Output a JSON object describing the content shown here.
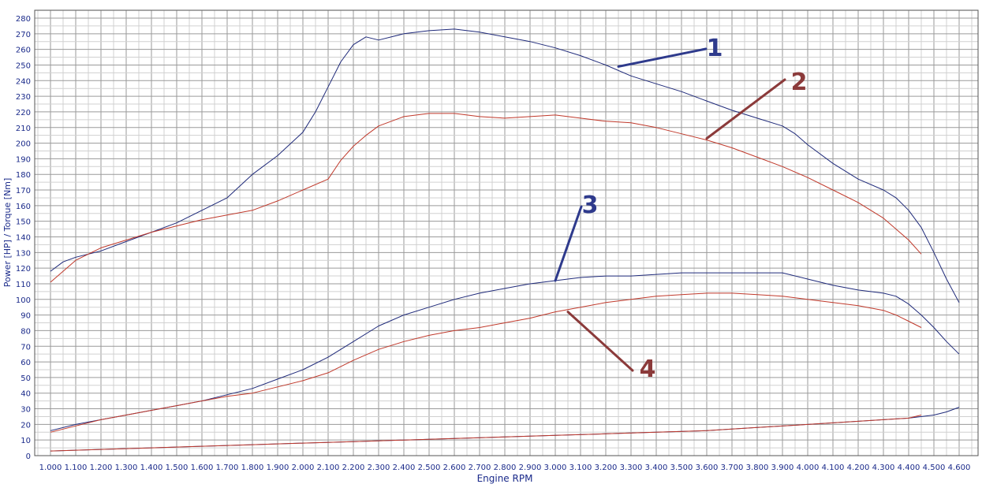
{
  "chart_data": {
    "type": "line",
    "title": "",
    "xlabel": "Engine RPM",
    "ylabel": "Power [HP] / Torque [Nm]",
    "xlim": [
      1000,
      4600
    ],
    "ylim": [
      0,
      280
    ],
    "grid": true,
    "legend": "none",
    "x_ticks": [
      "1.000",
      "1.100",
      "1.200",
      "1.300",
      "1.400",
      "1.500",
      "1.600",
      "1.700",
      "1.800",
      "1.900",
      "2.000",
      "2.100",
      "2.200",
      "2.300",
      "2.400",
      "2.500",
      "2.600",
      "2.700",
      "2.800",
      "2.900",
      "3.000",
      "3.100",
      "3.200",
      "3.300",
      "3.400",
      "3.500",
      "3.600",
      "3.700",
      "3.800",
      "3.900",
      "4.000",
      "4.100",
      "4.200",
      "4.300",
      "4.400",
      "4.500",
      "4.600"
    ],
    "y_ticks": [
      "0",
      "10",
      "20",
      "30",
      "40",
      "50",
      "60",
      "70",
      "80",
      "90",
      "100",
      "110",
      "120",
      "130",
      "140",
      "150",
      "160",
      "170",
      "180",
      "190",
      "200",
      "210",
      "220",
      "230",
      "240",
      "250",
      "260",
      "270",
      "280"
    ],
    "series": [
      {
        "color": "#1f2a7a",
        "x": [
          1000,
          1050,
          1100,
          1200,
          1300,
          1400,
          1500,
          1600,
          1700,
          1800,
          1900,
          2000,
          2050,
          2100,
          2150,
          2200,
          2250,
          2300,
          2400,
          2500,
          2600,
          2700,
          2800,
          2900,
          3000,
          3100,
          3200,
          3300,
          3400,
          3500,
          3600,
          3700,
          3800,
          3900,
          3950,
          4000,
          4100,
          4200,
          4300,
          4350,
          4400,
          4450,
          4500,
          4550,
          4600
        ],
        "values": [
          118,
          124,
          127,
          131,
          137,
          143,
          149,
          157,
          165,
          180,
          192,
          207,
          220,
          236,
          252,
          263,
          268,
          266,
          270,
          272,
          273,
          271,
          268,
          265,
          261,
          256,
          250,
          243,
          238,
          233,
          227,
          221,
          216,
          211,
          206,
          199,
          187,
          177,
          170,
          165,
          157,
          146,
          130,
          113,
          98
        ]
      },
      {
        "color": "#c0392b",
        "x": [
          1000,
          1050,
          1100,
          1200,
          1300,
          1400,
          1500,
          1600,
          1700,
          1800,
          1900,
          2000,
          2100,
          2150,
          2200,
          2250,
          2300,
          2400,
          2500,
          2600,
          2700,
          2800,
          2900,
          3000,
          3100,
          3200,
          3300,
          3400,
          3500,
          3600,
          3700,
          3800,
          3900,
          4000,
          4100,
          4200,
          4300,
          4350,
          4400,
          4450
        ],
        "values": [
          111,
          118,
          125,
          133,
          138,
          143,
          147,
          151,
          154,
          157,
          163,
          170,
          177,
          189,
          198,
          205,
          211,
          217,
          219,
          219,
          217,
          216,
          217,
          218,
          216,
          214,
          213,
          210,
          206,
          202,
          197,
          191,
          185,
          178,
          170,
          162,
          152,
          145,
          138,
          129
        ]
      },
      {
        "color": "#1f2a7a",
        "x": [
          1000,
          1100,
          1200,
          1300,
          1400,
          1500,
          1600,
          1700,
          1800,
          1900,
          2000,
          2100,
          2200,
          2300,
          2400,
          2500,
          2600,
          2700,
          2800,
          2900,
          3000,
          3100,
          3200,
          3300,
          3400,
          3500,
          3600,
          3700,
          3800,
          3900,
          4000,
          4100,
          4200,
          4300,
          4350,
          4400,
          4450,
          4500,
          4550,
          4600
        ],
        "values": [
          16,
          20,
          23,
          26,
          29,
          32,
          35,
          39,
          43,
          49,
          55,
          63,
          73,
          83,
          90,
          95,
          100,
          104,
          107,
          110,
          112,
          114,
          115,
          115,
          116,
          117,
          117,
          117,
          117,
          117,
          113,
          109,
          106,
          104,
          102,
          97,
          90,
          82,
          73,
          65
        ]
      },
      {
        "color": "#c0392b",
        "x": [
          1000,
          1100,
          1200,
          1300,
          1400,
          1500,
          1600,
          1700,
          1800,
          1900,
          2000,
          2100,
          2200,
          2300,
          2400,
          2500,
          2600,
          2700,
          2800,
          2900,
          3000,
          3100,
          3200,
          3300,
          3400,
          3500,
          3600,
          3700,
          3800,
          3900,
          4000,
          4100,
          4200,
          4300,
          4350,
          4400,
          4450
        ],
        "values": [
          15,
          19,
          23,
          26,
          29,
          32,
          35,
          38,
          40,
          44,
          48,
          53,
          61,
          68,
          73,
          77,
          80,
          82,
          85,
          88,
          92,
          95,
          98,
          100,
          102,
          103,
          104,
          104,
          103,
          102,
          100,
          98,
          96,
          93,
          90,
          86,
          82
        ]
      },
      {
        "color": "#1f2a7a",
        "x": [
          1000,
          1200,
          1400,
          1600,
          1800,
          2000,
          2200,
          2400,
          2600,
          2800,
          3000,
          3200,
          3400,
          3600,
          3800,
          4000,
          4200,
          4400,
          4500,
          4550,
          4600
        ],
        "values": [
          3,
          4,
          5,
          6,
          7,
          8,
          9,
          10,
          11,
          12,
          13,
          14,
          15,
          16,
          18,
          20,
          22,
          24,
          26,
          28,
          31
        ]
      },
      {
        "color": "#c0392b",
        "x": [
          1000,
          1200,
          1400,
          1600,
          1800,
          2000,
          2200,
          2400,
          2600,
          2800,
          3000,
          3200,
          3400,
          3600,
          3800,
          4000,
          4200,
          4400,
          4450
        ],
        "values": [
          3,
          4,
          5,
          6,
          7,
          8,
          9,
          10,
          11,
          12,
          13,
          14,
          15,
          16,
          18,
          20,
          22,
          24,
          26
        ]
      }
    ],
    "annotations": [
      {
        "label": "1",
        "color": "#2e3a8c",
        "points_to": {
          "x": 3250,
          "y": 249
        }
      },
      {
        "label": "2",
        "color": "#8b3a3a",
        "points_to": {
          "x": 3600,
          "y": 203
        }
      },
      {
        "label": "3",
        "color": "#2e3a8c",
        "points_to": {
          "x": 3000,
          "y": 112
        }
      },
      {
        "label": "4",
        "color": "#8b3a3a",
        "points_to": {
          "x": 3050,
          "y": 92
        }
      }
    ]
  }
}
